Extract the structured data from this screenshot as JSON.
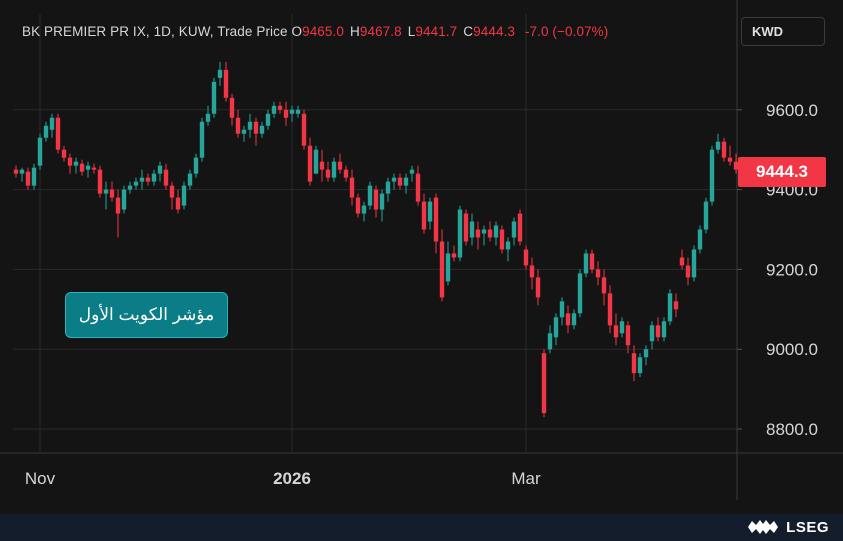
{
  "header": {
    "symbol_line": "BK PREMIER PR IX, 1D, KUW, Trade Price",
    "ohlc": [
      {
        "k": "O",
        "v": "9465.0"
      },
      {
        "k": "H",
        "v": "9467.8"
      },
      {
        "k": "L",
        "v": "9441.7"
      },
      {
        "k": "C",
        "v": "9444.3"
      }
    ],
    "change": "-7.0 (−0.07%)"
  },
  "currency": "KWD",
  "last_price_label": "9444.3",
  "badge_text": "مؤشر الكويت الأول",
  "brand": "LSEG",
  "colors": {
    "up": "#26a69a",
    "down": "#f23645",
    "background": "#141414",
    "grid": "#2a2a2a",
    "text": "#d6d6d6"
  },
  "chart_data": {
    "type": "candlestick",
    "title": "",
    "xlabel": "",
    "ylabel": "",
    "y_ticks": [
      8800,
      9000,
      9200,
      9400,
      9600
    ],
    "y_tick_labels": [
      "8800.0",
      "9000.0",
      "9200.0",
      "9400.0",
      "9600.0"
    ],
    "ylim": [
      8740,
      9840
    ],
    "x_ticks": [
      {
        "label": "Nov",
        "index": 4
      },
      {
        "label": "2026",
        "index": 46
      },
      {
        "label": "Mar",
        "index": 85
      }
    ],
    "grid": true,
    "last_price": 9444.3,
    "candles": [
      [
        9450,
        9460,
        9430,
        9440
      ],
      [
        9440,
        9455,
        9420,
        9450
      ],
      [
        9445,
        9455,
        9400,
        9410
      ],
      [
        9410,
        9465,
        9400,
        9455
      ],
      [
        9460,
        9540,
        9450,
        9530
      ],
      [
        9530,
        9570,
        9520,
        9560
      ],
      [
        9550,
        9590,
        9530,
        9580
      ],
      [
        9580,
        9590,
        9490,
        9500
      ],
      [
        9500,
        9510,
        9470,
        9480
      ],
      [
        9480,
        9490,
        9440,
        9460
      ],
      [
        9460,
        9480,
        9440,
        9470
      ],
      [
        9465,
        9475,
        9435,
        9445
      ],
      [
        9450,
        9470,
        9430,
        9460
      ],
      [
        9455,
        9465,
        9440,
        9450
      ],
      [
        9450,
        9460,
        9380,
        9390
      ],
      [
        9390,
        9420,
        9350,
        9400
      ],
      [
        9400,
        9420,
        9370,
        9380
      ],
      [
        9380,
        9400,
        9280,
        9340
      ],
      [
        9350,
        9410,
        9340,
        9400
      ],
      [
        9400,
        9420,
        9390,
        9410
      ],
      [
        9410,
        9430,
        9400,
        9420
      ],
      [
        9420,
        9450,
        9400,
        9430
      ],
      [
        9430,
        9440,
        9410,
        9420
      ],
      [
        9420,
        9450,
        9410,
        9440
      ],
      [
        9440,
        9470,
        9420,
        9460
      ],
      [
        9450,
        9465,
        9400,
        9410
      ],
      [
        9410,
        9420,
        9350,
        9380
      ],
      [
        9380,
        9400,
        9340,
        9350
      ],
      [
        9360,
        9420,
        9350,
        9410
      ],
      [
        9410,
        9450,
        9400,
        9440
      ],
      [
        9440,
        9490,
        9430,
        9480
      ],
      [
        9480,
        9580,
        9470,
        9570
      ],
      [
        9570,
        9610,
        9560,
        9590
      ],
      [
        9590,
        9680,
        9580,
        9670
      ],
      [
        9680,
        9720,
        9660,
        9700
      ],
      [
        9700,
        9720,
        9620,
        9630
      ],
      [
        9630,
        9640,
        9560,
        9580
      ],
      [
        9580,
        9600,
        9530,
        9540
      ],
      [
        9540,
        9560,
        9520,
        9550
      ],
      [
        9550,
        9590,
        9530,
        9570
      ],
      [
        9570,
        9580,
        9510,
        9540
      ],
      [
        9540,
        9570,
        9530,
        9560
      ],
      [
        9560,
        9600,
        9550,
        9590
      ],
      [
        9590,
        9620,
        9580,
        9610
      ],
      [
        9610,
        9620,
        9590,
        9600
      ],
      [
        9600,
        9620,
        9560,
        9580
      ],
      [
        9590,
        9610,
        9570,
        9600
      ],
      [
        9590,
        9610,
        9580,
        9600
      ],
      [
        9590,
        9600,
        9500,
        9510
      ],
      [
        9510,
        9530,
        9410,
        9420
      ],
      [
        9440,
        9510,
        9440,
        9500
      ],
      [
        9470,
        9500,
        9420,
        9450
      ],
      [
        9450,
        9470,
        9420,
        9430
      ],
      [
        9430,
        9480,
        9420,
        9470
      ],
      [
        9470,
        9490,
        9440,
        9450
      ],
      [
        9450,
        9460,
        9420,
        9430
      ],
      [
        9430,
        9450,
        9360,
        9380
      ],
      [
        9380,
        9390,
        9330,
        9340
      ],
      [
        9340,
        9370,
        9320,
        9360
      ],
      [
        9360,
        9420,
        9350,
        9410
      ],
      [
        9400,
        9410,
        9330,
        9350
      ],
      [
        9350,
        9400,
        9320,
        9390
      ],
      [
        9390,
        9430,
        9370,
        9420
      ],
      [
        9420,
        9440,
        9400,
        9430
      ],
      [
        9430,
        9440,
        9400,
        9410
      ],
      [
        9410,
        9440,
        9390,
        9430
      ],
      [
        9440,
        9460,
        9420,
        9450
      ],
      [
        9440,
        9460,
        9360,
        9370
      ],
      [
        9370,
        9390,
        9290,
        9300
      ],
      [
        9320,
        9380,
        9300,
        9370
      ],
      [
        9380,
        9390,
        9240,
        9270
      ],
      [
        9270,
        9300,
        9120,
        9130
      ],
      [
        9170,
        9270,
        9160,
        9240
      ],
      [
        9240,
        9260,
        9220,
        9230
      ],
      [
        9230,
        9360,
        9220,
        9350
      ],
      [
        9340,
        9350,
        9260,
        9270
      ],
      [
        9280,
        9340,
        9260,
        9320
      ],
      [
        9300,
        9320,
        9250,
        9280
      ],
      [
        9290,
        9310,
        9260,
        9300
      ],
      [
        9300,
        9320,
        9270,
        9280
      ],
      [
        9280,
        9320,
        9260,
        9310
      ],
      [
        9300,
        9310,
        9240,
        9250
      ],
      [
        9250,
        9280,
        9220,
        9270
      ],
      [
        9280,
        9330,
        9260,
        9320
      ],
      [
        9340,
        9350,
        9260,
        9270
      ],
      [
        9250,
        9260,
        9200,
        9210
      ],
      [
        9210,
        9230,
        9150,
        9180
      ],
      [
        9180,
        9200,
        9110,
        9130
      ],
      [
        8990,
        9000,
        8830,
        8840
      ],
      [
        9000,
        9060,
        8990,
        9040
      ],
      [
        9030,
        9090,
        9010,
        9080
      ],
      [
        9080,
        9130,
        9060,
        9120
      ],
      [
        9090,
        9110,
        9040,
        9060
      ],
      [
        9060,
        9100,
        9050,
        9090
      ],
      [
        9090,
        9200,
        9080,
        9190
      ],
      [
        9190,
        9250,
        9180,
        9240
      ],
      [
        9240,
        9250,
        9190,
        9200
      ],
      [
        9200,
        9220,
        9160,
        9180
      ],
      [
        9180,
        9200,
        9110,
        9140
      ],
      [
        9140,
        9160,
        9040,
        9060
      ],
      [
        9060,
        9090,
        9010,
        9030
      ],
      [
        9040,
        9080,
        9030,
        9070
      ],
      [
        9060,
        9070,
        8990,
        9010
      ],
      [
        8990,
        9010,
        8920,
        8940
      ],
      [
        8940,
        8990,
        8930,
        8980
      ],
      [
        8980,
        9010,
        8960,
        9000
      ],
      [
        9020,
        9070,
        9000,
        9060
      ],
      [
        9060,
        9080,
        9020,
        9030
      ],
      [
        9030,
        9080,
        9020,
        9070
      ],
      [
        9070,
        9150,
        9060,
        9140
      ],
      [
        9120,
        9140,
        9080,
        9100
      ],
      [
        9230,
        9250,
        9200,
        9210
      ],
      [
        9210,
        9230,
        9160,
        9180
      ],
      [
        9180,
        9260,
        9170,
        9250
      ],
      [
        9250,
        9310,
        9240,
        9300
      ],
      [
        9300,
        9380,
        9290,
        9370
      ],
      [
        9370,
        9510,
        9360,
        9500
      ],
      [
        9500,
        9540,
        9490,
        9520
      ],
      [
        9520,
        9530,
        9470,
        9480
      ],
      [
        9480,
        9510,
        9460,
        9470
      ],
      [
        9470,
        9490,
        9440,
        9450
      ],
      [
        9465,
        9468,
        9442,
        9444
      ]
    ]
  }
}
